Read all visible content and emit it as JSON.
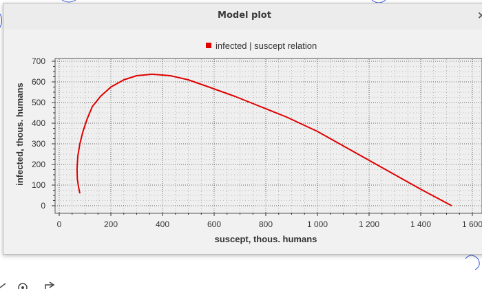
{
  "window": {
    "title": "Model plot",
    "close_icon": "close-icon"
  },
  "chart_data": {
    "type": "line",
    "xlabel": "suscept, thous. humans",
    "ylabel": "infected, thous. humans",
    "xlim": [
      0,
      1600
    ],
    "ylim": [
      0,
      700
    ],
    "x_ticks": [
      "0",
      "200",
      "400",
      "600",
      "800",
      "1 000",
      "1 200",
      "1 400",
      "1 600"
    ],
    "y_ticks": [
      "0",
      "100",
      "200",
      "300",
      "400",
      "500",
      "600",
      "700"
    ],
    "grid": true,
    "legend_position": "top",
    "series": [
      {
        "name": "infected | suscept relation",
        "color": "#e00000",
        "points": [
          [
            80,
            60
          ],
          [
            75,
            90
          ],
          [
            70,
            130
          ],
          [
            69,
            180
          ],
          [
            72,
            240
          ],
          [
            80,
            300
          ],
          [
            92,
            360
          ],
          [
            108,
            420
          ],
          [
            128,
            480
          ],
          [
            160,
            530
          ],
          [
            200,
            575
          ],
          [
            250,
            610
          ],
          [
            300,
            630
          ],
          [
            360,
            637
          ],
          [
            430,
            630
          ],
          [
            500,
            610
          ],
          [
            580,
            575
          ],
          [
            680,
            530
          ],
          [
            780,
            480
          ],
          [
            880,
            430
          ],
          [
            1000,
            360
          ],
          [
            1100,
            290
          ],
          [
            1200,
            220
          ],
          [
            1300,
            150
          ],
          [
            1400,
            80
          ],
          [
            1520,
            0
          ]
        ]
      }
    ]
  }
}
